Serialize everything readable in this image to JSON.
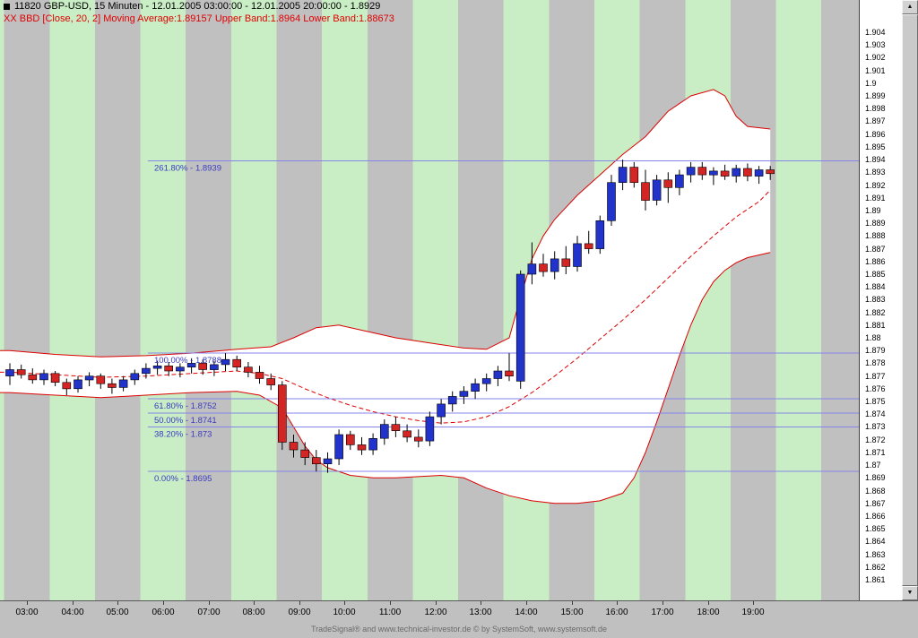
{
  "header": {
    "title": "11820  GBP-USD, 15 Minuten - 12.01.2005 03:00:00 - 12.01.2005 20:00:00 - 1.8929",
    "indicator": "XX BBD [Close, 20, 2] Moving Average:1.89157 Upper Band:1.8964 Lower Band:1.88673"
  },
  "footer": {
    "text": "TradeSignal® and www.technical-investor.de © by SystemSoft, www.systemsoft.de"
  },
  "scrollbar": {
    "up_glyph": "▲",
    "down_glyph": "▼"
  },
  "chart_data": {
    "type": "candlestick",
    "symbol": "GBP-USD",
    "chart_id": "11820",
    "interval": "15 Minuten",
    "period_start": "12.01.2005 03:00:00",
    "period_end": "12.01.2005 20:00:00",
    "last_price": 1.8929,
    "indicator": {
      "name": "BBD [Close, 20, 2]",
      "moving_average": 1.89157,
      "upper_band": 1.8964,
      "lower_band": 1.88673
    },
    "y_min": 1.861,
    "y_max": 1.904,
    "y_step": 0.001,
    "y_labels": [
      "1.904",
      "1.903",
      "1.902",
      "1.901",
      "1.9",
      "1.899",
      "1.898",
      "1.897",
      "1.896",
      "1.895",
      "1.894",
      "1.893",
      "1.892",
      "1.891",
      "1.89",
      "1.889",
      "1.888",
      "1.887",
      "1.886",
      "1.885",
      "1.884",
      "1.883",
      "1.882",
      "1.881",
      "1.88",
      "1.879",
      "1.878",
      "1.877",
      "1.876",
      "1.875",
      "1.874",
      "1.873",
      "1.872",
      "1.871",
      "1.87",
      "1.869",
      "1.868",
      "1.867",
      "1.866",
      "1.865",
      "1.864",
      "1.863",
      "1.862",
      "1.861"
    ],
    "x_labels": [
      "03:00",
      "04:00",
      "05:00",
      "06:00",
      "07:00",
      "08:00",
      "09:00",
      "10:00",
      "11:00",
      "12:00",
      "13:00",
      "14:00",
      "15:00",
      "16:00",
      "17:00",
      "18:00",
      "19:00"
    ],
    "bars_per_hour": 4,
    "fibonacci": [
      {
        "pct": "261.80%",
        "price": 1.8939,
        "label": "261.80% - 1.8939"
      },
      {
        "pct": "100.00%",
        "price": 1.8788,
        "label": "100.00% - 1.8788"
      },
      {
        "pct": "61.80%",
        "price": 1.8752,
        "label": "61.80% - 1.8752"
      },
      {
        "pct": "50.00%",
        "price": 1.8741,
        "label": "50.00% - 1.8741"
      },
      {
        "pct": "38.20%",
        "price": 1.873,
        "label": "38.20% - 1.873"
      },
      {
        "pct": "0.00%",
        "price": 1.8695,
        "label": "0.00% - 1.8695"
      }
    ],
    "candles": [
      [
        1.877,
        1.878,
        1.8763,
        1.8775
      ],
      [
        1.8775,
        1.8779,
        1.8768,
        1.8771
      ],
      [
        1.8771,
        1.8776,
        1.8764,
        1.8767
      ],
      [
        1.8767,
        1.8775,
        1.8763,
        1.8772
      ],
      [
        1.8772,
        1.8774,
        1.8762,
        1.8765
      ],
      [
        1.8765,
        1.8768,
        1.8755,
        1.876
      ],
      [
        1.876,
        1.877,
        1.8757,
        1.8767
      ],
      [
        1.8767,
        1.8773,
        1.8762,
        1.877
      ],
      [
        1.877,
        1.8772,
        1.876,
        1.8764
      ],
      [
        1.8764,
        1.8768,
        1.8756,
        1.8761
      ],
      [
        1.8761,
        1.877,
        1.8758,
        1.8767
      ],
      [
        1.8767,
        1.8775,
        1.8763,
        1.8772
      ],
      [
        1.8772,
        1.878,
        1.8768,
        1.8776
      ],
      [
        1.8776,
        1.8782,
        1.8771,
        1.8778
      ],
      [
        1.8778,
        1.8781,
        1.877,
        1.8774
      ],
      [
        1.8774,
        1.878,
        1.8769,
        1.8777
      ],
      [
        1.8777,
        1.8784,
        1.8772,
        1.878
      ],
      [
        1.878,
        1.8783,
        1.8771,
        1.8775
      ],
      [
        1.8775,
        1.8782,
        1.877,
        1.8779
      ],
      [
        1.8779,
        1.8788,
        1.8774,
        1.8783
      ],
      [
        1.8783,
        1.8786,
        1.8774,
        1.8777
      ],
      [
        1.8777,
        1.8781,
        1.8769,
        1.8773
      ],
      [
        1.8773,
        1.8778,
        1.8764,
        1.8768
      ],
      [
        1.8768,
        1.8772,
        1.8759,
        1.8763
      ],
      [
        1.8763,
        1.8766,
        1.8712,
        1.8718
      ],
      [
        1.8718,
        1.8724,
        1.8706,
        1.8712
      ],
      [
        1.8712,
        1.8718,
        1.87,
        1.8706
      ],
      [
        1.8706,
        1.8712,
        1.8695,
        1.8701
      ],
      [
        1.8701,
        1.871,
        1.8694,
        1.8705
      ],
      [
        1.8705,
        1.8728,
        1.87,
        1.8724
      ],
      [
        1.8724,
        1.8727,
        1.8712,
        1.8716
      ],
      [
        1.8716,
        1.8722,
        1.8708,
        1.8712
      ],
      [
        1.8712,
        1.8725,
        1.8708,
        1.8721
      ],
      [
        1.8721,
        1.8736,
        1.8716,
        1.8732
      ],
      [
        1.8732,
        1.8738,
        1.8722,
        1.8727
      ],
      [
        1.8727,
        1.8732,
        1.8718,
        1.8722
      ],
      [
        1.8722,
        1.8728,
        1.8714,
        1.8719
      ],
      [
        1.8719,
        1.8742,
        1.8715,
        1.8738
      ],
      [
        1.8738,
        1.8752,
        1.8732,
        1.8748
      ],
      [
        1.8748,
        1.8758,
        1.8742,
        1.8754
      ],
      [
        1.8754,
        1.8762,
        1.8748,
        1.8758
      ],
      [
        1.8758,
        1.8768,
        1.8752,
        1.8764
      ],
      [
        1.8764,
        1.8772,
        1.8758,
        1.8768
      ],
      [
        1.8768,
        1.8778,
        1.8762,
        1.8774
      ],
      [
        1.8774,
        1.8788,
        1.8766,
        1.877
      ],
      [
        1.8766,
        1.8853,
        1.876,
        1.885
      ],
      [
        1.885,
        1.8875,
        1.8842,
        1.8858
      ],
      [
        1.8858,
        1.8866,
        1.8848,
        1.8852
      ],
      [
        1.8852,
        1.8868,
        1.8846,
        1.8862
      ],
      [
        1.8862,
        1.8872,
        1.885,
        1.8856
      ],
      [
        1.8856,
        1.888,
        1.8852,
        1.8874
      ],
      [
        1.8874,
        1.8884,
        1.8866,
        1.887
      ],
      [
        1.887,
        1.8896,
        1.8866,
        1.8892
      ],
      [
        1.8892,
        1.8928,
        1.8888,
        1.8922
      ],
      [
        1.8922,
        1.894,
        1.8916,
        1.8934
      ],
      [
        1.8934,
        1.8938,
        1.8918,
        1.8922
      ],
      [
        1.8922,
        1.8932,
        1.89,
        1.8908
      ],
      [
        1.8908,
        1.8928,
        1.8904,
        1.8924
      ],
      [
        1.8924,
        1.893,
        1.8906,
        1.8918
      ],
      [
        1.8918,
        1.8932,
        1.8912,
        1.8928
      ],
      [
        1.8928,
        1.8938,
        1.8922,
        1.8934
      ],
      [
        1.8934,
        1.8938,
        1.8924,
        1.8928
      ],
      [
        1.8928,
        1.8934,
        1.892,
        1.8931
      ],
      [
        1.8931,
        1.8936,
        1.8924,
        1.8927
      ],
      [
        1.8927,
        1.8936,
        1.8922,
        1.8933
      ],
      [
        1.8933,
        1.8937,
        1.8923,
        1.8927
      ],
      [
        1.8927,
        1.8935,
        1.8921,
        1.8932
      ],
      [
        1.8932,
        1.8935,
        1.8924,
        1.8929
      ]
    ],
    "bollinger": {
      "upper": [
        [
          -0.9,
          1.879
        ],
        [
          0,
          1.879
        ],
        [
          4,
          1.8787
        ],
        [
          8,
          1.8785
        ],
        [
          12,
          1.8786
        ],
        [
          16,
          1.8788
        ],
        [
          20,
          1.8791
        ],
        [
          23,
          1.8793
        ],
        [
          25,
          1.88
        ],
        [
          27,
          1.8808
        ],
        [
          29,
          1.881
        ],
        [
          31,
          1.8806
        ],
        [
          34,
          1.88
        ],
        [
          37,
          1.8796
        ],
        [
          40,
          1.8792
        ],
        [
          42,
          1.8791
        ],
        [
          44,
          1.88
        ],
        [
          45,
          1.8832
        ],
        [
          46,
          1.8862
        ],
        [
          47,
          1.888
        ],
        [
          48,
          1.8893
        ],
        [
          50,
          1.8912
        ],
        [
          52,
          1.8928
        ],
        [
          54,
          1.8944
        ],
        [
          56,
          1.8958
        ],
        [
          58,
          1.8978
        ],
        [
          60,
          1.899
        ],
        [
          62,
          1.8995
        ],
        [
          63,
          1.899
        ],
        [
          64,
          1.8974
        ],
        [
          65,
          1.8966
        ],
        [
          67,
          1.8964
        ]
      ],
      "middle": [
        [
          -0.9,
          1.8773
        ],
        [
          0,
          1.8773
        ],
        [
          4,
          1.8771
        ],
        [
          8,
          1.8769
        ],
        [
          12,
          1.877
        ],
        [
          16,
          1.8772
        ],
        [
          20,
          1.8774
        ],
        [
          22,
          1.8772
        ],
        [
          24,
          1.8768
        ],
        [
          26,
          1.876
        ],
        [
          28,
          1.8753
        ],
        [
          30,
          1.8747
        ],
        [
          32,
          1.8742
        ],
        [
          34,
          1.8738
        ],
        [
          36,
          1.8735
        ],
        [
          38,
          1.8733
        ],
        [
          40,
          1.8734
        ],
        [
          42,
          1.8738
        ],
        [
          44,
          1.8746
        ],
        [
          46,
          1.8757
        ],
        [
          48,
          1.877
        ],
        [
          50,
          1.8784
        ],
        [
          52,
          1.8799
        ],
        [
          54,
          1.8814
        ],
        [
          56,
          1.883
        ],
        [
          58,
          1.8847
        ],
        [
          60,
          1.8864
        ],
        [
          62,
          1.888
        ],
        [
          64,
          1.8895
        ],
        [
          66,
          1.8907
        ],
        [
          67,
          1.8916
        ]
      ],
      "lower": [
        [
          -0.9,
          1.8757
        ],
        [
          0,
          1.8757
        ],
        [
          4,
          1.8755
        ],
        [
          8,
          1.8753
        ],
        [
          12,
          1.8755
        ],
        [
          16,
          1.8757
        ],
        [
          20,
          1.8758
        ],
        [
          22,
          1.8755
        ],
        [
          24,
          1.8745
        ],
        [
          25,
          1.873
        ],
        [
          26,
          1.8715
        ],
        [
          27,
          1.8704
        ],
        [
          28,
          1.8698
        ],
        [
          30,
          1.8692
        ],
        [
          32,
          1.869
        ],
        [
          34,
          1.869
        ],
        [
          36,
          1.8691
        ],
        [
          38,
          1.8692
        ],
        [
          40,
          1.869
        ],
        [
          42,
          1.8682
        ],
        [
          44,
          1.8676
        ],
        [
          46,
          1.8672
        ],
        [
          48,
          1.867
        ],
        [
          50,
          1.867
        ],
        [
          52,
          1.8672
        ],
        [
          54,
          1.8678
        ],
        [
          55,
          1.869
        ],
        [
          56,
          1.871
        ],
        [
          57,
          1.8734
        ],
        [
          58,
          1.876
        ],
        [
          59,
          1.8786
        ],
        [
          60,
          1.881
        ],
        [
          61,
          1.883
        ],
        [
          62,
          1.8844
        ],
        [
          63,
          1.8853
        ],
        [
          64,
          1.8859
        ],
        [
          65,
          1.8863
        ],
        [
          67,
          1.8867
        ]
      ]
    },
    "colors": {
      "up": "#2233cc",
      "down": "#d42525",
      "band": "#dd0000",
      "fib_line": "#8585e8",
      "fib_label": "#3a3ac0",
      "stripe_gray": "#c0c0c0",
      "stripe_green": "#c9eec5",
      "band_fill": "#ffffff",
      "indicator_text": "#e00000"
    }
  }
}
